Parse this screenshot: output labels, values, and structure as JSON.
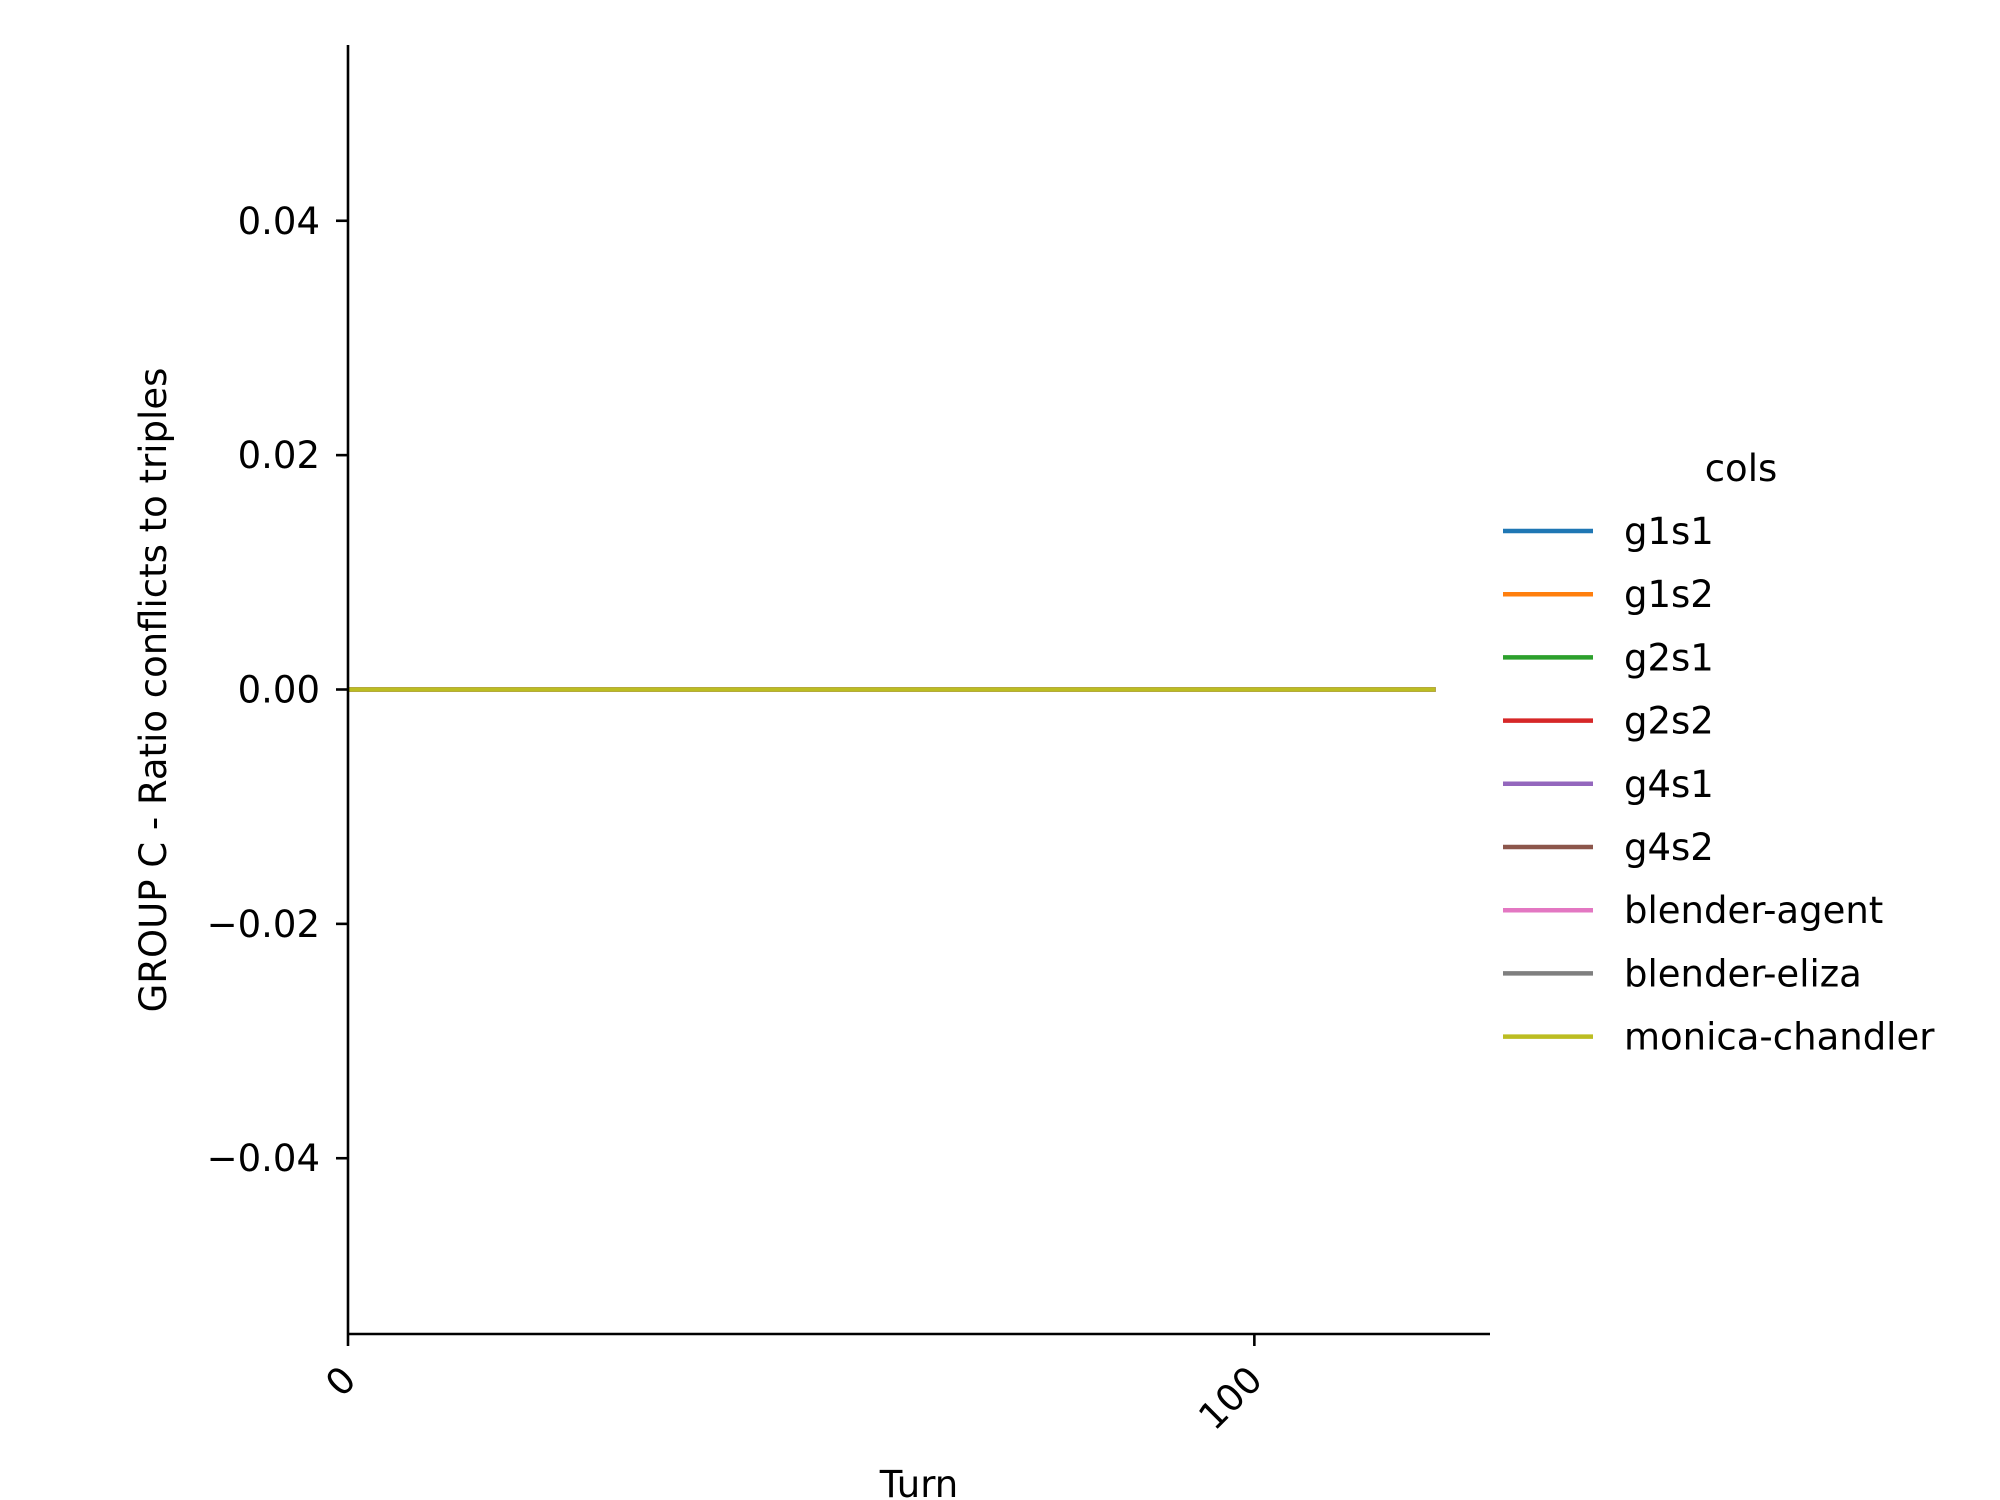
{
  "chart_data": {
    "type": "line",
    "title": "",
    "xlabel": "Turn",
    "ylabel": "GROUP C - Ratio conflicts to triples",
    "xlim": [
      0,
      126
    ],
    "ylim": [
      -0.055,
      0.055
    ],
    "xticks": [
      0,
      100
    ],
    "xtick_labels": [
      "0",
      "100"
    ],
    "yticks": [
      0.04,
      0.02,
      0.0,
      -0.02,
      -0.04
    ],
    "ytick_labels": [
      "0.04",
      "0.02",
      "0.00",
      "−0.02",
      "−0.04"
    ],
    "grid": false,
    "legend": {
      "title": "cols",
      "placement": "right"
    },
    "x": [
      0,
      120
    ],
    "series": [
      {
        "name": "g1s1",
        "color": "#1f77b4",
        "values": [
          0,
          0
        ]
      },
      {
        "name": "g1s2",
        "color": "#ff7f0e",
        "values": [
          0,
          0
        ]
      },
      {
        "name": "g2s1",
        "color": "#2ca02c",
        "values": [
          0,
          0
        ]
      },
      {
        "name": "g2s2",
        "color": "#d62728",
        "values": [
          0,
          0
        ]
      },
      {
        "name": "g4s1",
        "color": "#9467bd",
        "values": [
          0,
          0
        ]
      },
      {
        "name": "g4s2",
        "color": "#8c564b",
        "values": [
          0,
          0
        ]
      },
      {
        "name": "blender-agent",
        "color": "#e377c2",
        "values": [
          0,
          0
        ]
      },
      {
        "name": "blender-eliza",
        "color": "#7f7f7f",
        "values": [
          0,
          0
        ]
      },
      {
        "name": "monica-chandler",
        "color": "#bcbd22",
        "values": [
          0,
          0
        ]
      }
    ]
  }
}
